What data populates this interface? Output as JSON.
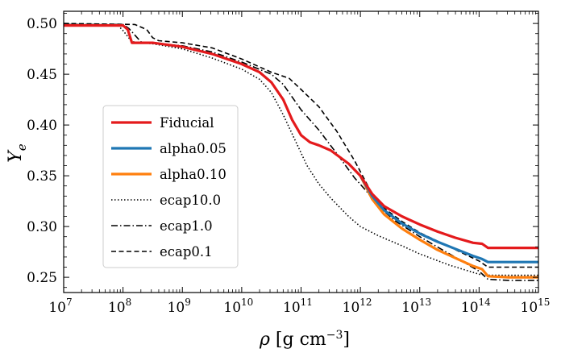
{
  "chart_data": {
    "type": "line",
    "xlabel": "ρ [g cm⁻³]",
    "ylabel": "Ye",
    "xscale": "log",
    "xlim": [
      10000000.0,
      1000000000000000.0
    ],
    "ylim": [
      0.235,
      0.512
    ],
    "x_ticks": [
      {
        "base": "10",
        "exp": "7",
        "value": 7
      },
      {
        "base": "10",
        "exp": "8",
        "value": 8
      },
      {
        "base": "10",
        "exp": "9",
        "value": 9
      },
      {
        "base": "10",
        "exp": "10",
        "value": 10
      },
      {
        "base": "10",
        "exp": "11",
        "value": 11
      },
      {
        "base": "10",
        "exp": "12",
        "value": 12
      },
      {
        "base": "10",
        "exp": "13",
        "value": 13
      },
      {
        "base": "10",
        "exp": "14",
        "value": 14
      },
      {
        "base": "10",
        "exp": "15",
        "value": 15
      }
    ],
    "y_ticks": [
      "0.25",
      "0.30",
      "0.35",
      "0.40",
      "0.45",
      "0.50"
    ],
    "legend_position": "center-left",
    "series": [
      {
        "name": "Fiducial",
        "color": "#e41a1c",
        "dash": "solid",
        "width": 3.2,
        "points": [
          [
            7,
            0.498
          ],
          [
            8.0,
            0.498
          ],
          [
            8.08,
            0.494
          ],
          [
            8.15,
            0.481
          ],
          [
            8.5,
            0.481
          ],
          [
            9.0,
            0.477
          ],
          [
            9.5,
            0.47
          ],
          [
            10.0,
            0.46
          ],
          [
            10.3,
            0.452
          ],
          [
            10.5,
            0.442
          ],
          [
            10.7,
            0.425
          ],
          [
            10.85,
            0.405
          ],
          [
            11.0,
            0.39
          ],
          [
            11.15,
            0.383
          ],
          [
            11.3,
            0.38
          ],
          [
            11.5,
            0.375
          ],
          [
            11.8,
            0.362
          ],
          [
            12.0,
            0.35
          ],
          [
            12.2,
            0.332
          ],
          [
            12.4,
            0.32
          ],
          [
            12.7,
            0.31
          ],
          [
            13.0,
            0.302
          ],
          [
            13.3,
            0.295
          ],
          [
            13.6,
            0.289
          ],
          [
            13.9,
            0.284
          ],
          [
            14.05,
            0.283
          ],
          [
            14.15,
            0.279
          ],
          [
            14.5,
            0.279
          ],
          [
            15,
            0.279
          ]
        ]
      },
      {
        "name": "alpha0.05",
        "color": "#1f77b4",
        "dash": "solid",
        "width": 3.2,
        "points": [
          [
            12.0,
            0.35
          ],
          [
            12.2,
            0.33
          ],
          [
            12.4,
            0.316
          ],
          [
            12.7,
            0.303
          ],
          [
            13.0,
            0.293
          ],
          [
            13.3,
            0.285
          ],
          [
            13.6,
            0.278
          ],
          [
            13.9,
            0.271
          ],
          [
            14.05,
            0.268
          ],
          [
            14.15,
            0.265
          ],
          [
            14.5,
            0.265
          ],
          [
            15,
            0.265
          ]
        ]
      },
      {
        "name": "alpha0.10",
        "color": "#ff7f0e",
        "dash": "solid",
        "width": 3.2,
        "points": [
          [
            12.0,
            0.35
          ],
          [
            12.2,
            0.327
          ],
          [
            12.4,
            0.312
          ],
          [
            12.7,
            0.298
          ],
          [
            13.0,
            0.287
          ],
          [
            13.3,
            0.277
          ],
          [
            13.6,
            0.269
          ],
          [
            13.9,
            0.261
          ],
          [
            14.05,
            0.258
          ],
          [
            14.15,
            0.251
          ],
          [
            14.5,
            0.25
          ],
          [
            15,
            0.25
          ]
        ]
      },
      {
        "name": "ecap10.0",
        "color": "#000000",
        "dash": "dotted",
        "width": 1.6,
        "points": [
          [
            7,
            0.499
          ],
          [
            7.9,
            0.499
          ],
          [
            8.0,
            0.493
          ],
          [
            8.15,
            0.482
          ],
          [
            8.5,
            0.48
          ],
          [
            9.0,
            0.475
          ],
          [
            9.5,
            0.466
          ],
          [
            10.0,
            0.455
          ],
          [
            10.3,
            0.445
          ],
          [
            10.5,
            0.432
          ],
          [
            10.7,
            0.41
          ],
          [
            10.9,
            0.385
          ],
          [
            11.1,
            0.36
          ],
          [
            11.3,
            0.342
          ],
          [
            11.5,
            0.328
          ],
          [
            11.8,
            0.31
          ],
          [
            12.0,
            0.3
          ],
          [
            12.3,
            0.291
          ],
          [
            12.7,
            0.281
          ],
          [
            13.0,
            0.273
          ],
          [
            13.5,
            0.262
          ],
          [
            14.0,
            0.253
          ],
          [
            14.15,
            0.252
          ],
          [
            14.5,
            0.252
          ],
          [
            15,
            0.252
          ]
        ]
      },
      {
        "name": "ecap1.0",
        "color": "#000000",
        "dash": "dashdot",
        "width": 1.6,
        "points": [
          [
            7,
            0.499
          ],
          [
            8.0,
            0.499
          ],
          [
            8.1,
            0.495
          ],
          [
            8.3,
            0.482
          ],
          [
            8.6,
            0.48
          ],
          [
            9.0,
            0.478
          ],
          [
            9.5,
            0.472
          ],
          [
            10.0,
            0.462
          ],
          [
            10.5,
            0.45
          ],
          [
            10.7,
            0.44
          ],
          [
            11.0,
            0.415
          ],
          [
            11.3,
            0.395
          ],
          [
            11.6,
            0.372
          ],
          [
            11.9,
            0.348
          ],
          [
            12.1,
            0.335
          ],
          [
            12.3,
            0.32
          ],
          [
            12.6,
            0.305
          ],
          [
            13.0,
            0.29
          ],
          [
            13.5,
            0.273
          ],
          [
            14.0,
            0.256
          ],
          [
            14.15,
            0.248
          ],
          [
            14.5,
            0.247
          ],
          [
            15,
            0.247
          ]
        ]
      },
      {
        "name": "ecap0.1",
        "color": "#000000",
        "dash": "dashed",
        "width": 1.6,
        "points": [
          [
            7,
            0.5
          ],
          [
            8.2,
            0.499
          ],
          [
            8.4,
            0.494
          ],
          [
            8.5,
            0.486
          ],
          [
            8.6,
            0.483
          ],
          [
            9.0,
            0.481
          ],
          [
            9.5,
            0.476
          ],
          [
            10.0,
            0.465
          ],
          [
            10.5,
            0.452
          ],
          [
            10.8,
            0.446
          ],
          [
            11.0,
            0.435
          ],
          [
            11.3,
            0.418
          ],
          [
            11.6,
            0.394
          ],
          [
            11.9,
            0.365
          ],
          [
            12.2,
            0.332
          ],
          [
            12.4,
            0.318
          ],
          [
            12.7,
            0.305
          ],
          [
            13.0,
            0.294
          ],
          [
            13.5,
            0.28
          ],
          [
            14.0,
            0.266
          ],
          [
            14.15,
            0.26
          ],
          [
            14.5,
            0.26
          ],
          [
            15,
            0.26
          ]
        ]
      }
    ]
  }
}
